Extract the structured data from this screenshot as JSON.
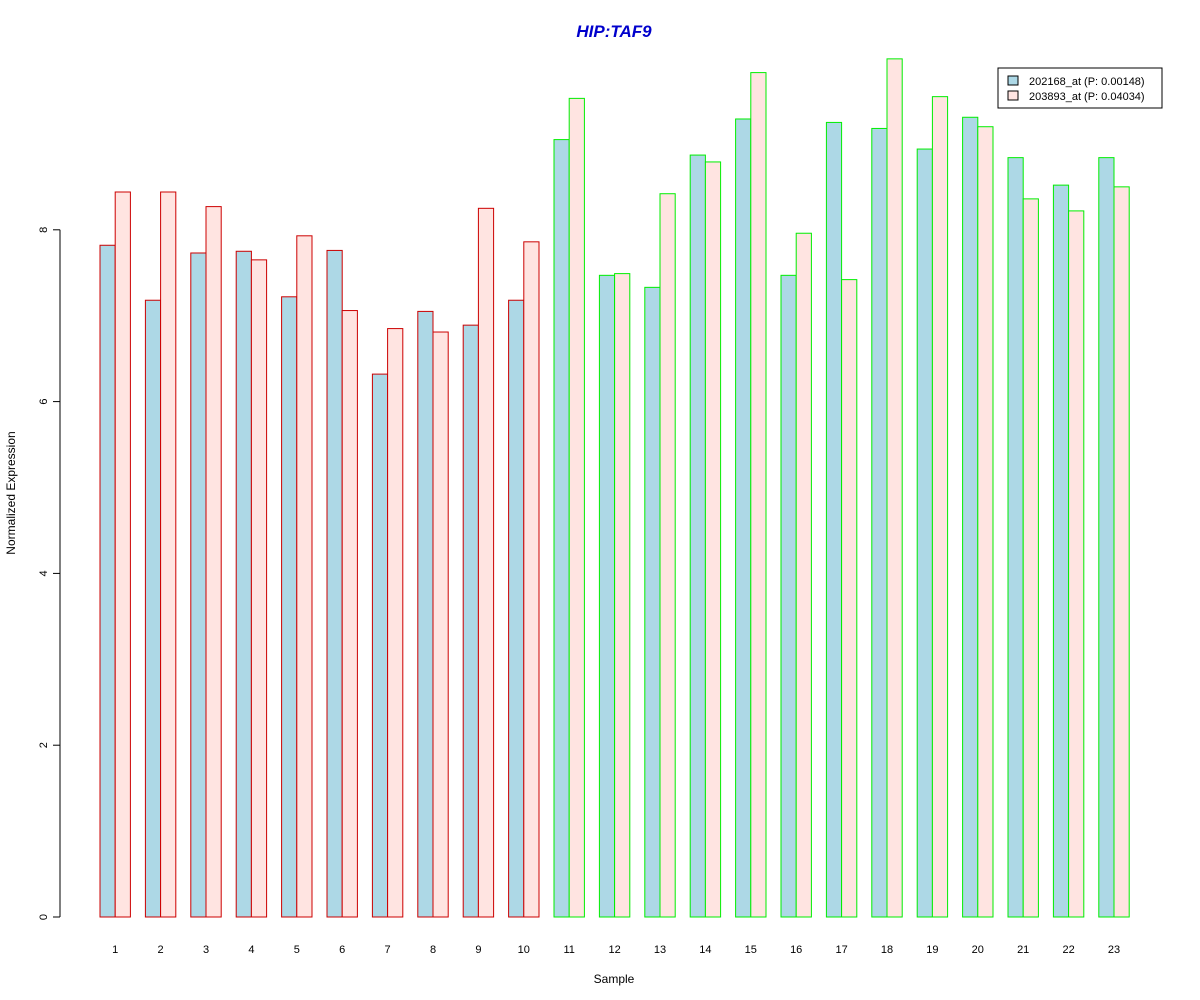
{
  "colors": {
    "title": "#0000CC",
    "series1_fill": "#ADD8E6",
    "series2_fill": "#FFE4E1",
    "group1_border": "#CC0000",
    "group2_border": "#00EE00",
    "axis": "#000000"
  },
  "chart_data": {
    "type": "bar",
    "title": "HIP:TAF9",
    "xlabel": "Sample",
    "ylabel": "Normalized Expression",
    "ylim": [
      0,
      10
    ],
    "yticks": [
      0,
      2,
      4,
      6,
      8
    ],
    "grid": false,
    "legend_position": "top-right",
    "categories": [
      "1",
      "2",
      "3",
      "4",
      "5",
      "6",
      "7",
      "8",
      "9",
      "10",
      "11",
      "12",
      "13",
      "14",
      "15",
      "16",
      "17",
      "18",
      "19",
      "20",
      "21",
      "22",
      "23"
    ],
    "group_of_category": [
      1,
      1,
      1,
      1,
      1,
      1,
      1,
      1,
      1,
      1,
      2,
      2,
      2,
      2,
      2,
      2,
      2,
      2,
      2,
      2,
      2,
      2,
      2
    ],
    "series": [
      {
        "name": "202168_at (P: 0.00148)",
        "values": [
          7.82,
          7.18,
          7.73,
          7.75,
          7.22,
          7.76,
          6.32,
          7.05,
          6.89,
          7.18,
          9.05,
          7.47,
          7.33,
          8.87,
          9.29,
          7.47,
          9.25,
          9.18,
          8.94,
          9.31,
          8.84,
          8.52,
          8.84
        ]
      },
      {
        "name": "203893_at (P: 0.04034)",
        "values": [
          8.44,
          8.44,
          8.27,
          7.65,
          7.93,
          7.06,
          6.85,
          6.81,
          8.25,
          7.86,
          9.53,
          7.49,
          8.42,
          8.79,
          9.83,
          7.96,
          7.42,
          9.99,
          9.55,
          9.2,
          8.36,
          8.22,
          8.5
        ]
      }
    ]
  }
}
